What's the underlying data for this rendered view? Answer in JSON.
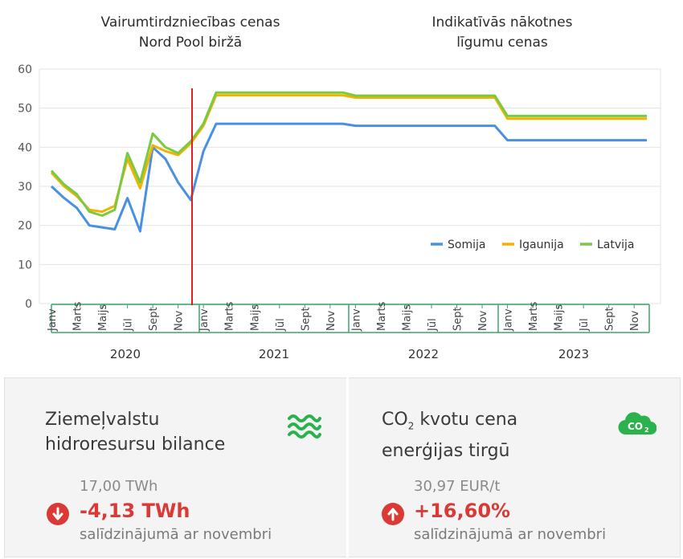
{
  "chart_data": {
    "type": "line",
    "titles": {
      "left": [
        "Vairumtirdzniecības cenas",
        "Nord Pool biržā"
      ],
      "right": [
        "Indikatīvās nākotnes",
        "līgumu cenas"
      ]
    },
    "ylim": [
      0,
      60
    ],
    "yticks": [
      "0",
      "10",
      "20",
      "30",
      "40",
      "50",
      "60"
    ],
    "month_labels": [
      "Janv",
      "Marts",
      "Maijs",
      "Jūl",
      "Sept",
      "Nov"
    ],
    "years": [
      "2020",
      "2021",
      "2022",
      "2023"
    ],
    "x_start": "2020-01",
    "divider_after_month": "2020-12",
    "legend_position": "right-middle",
    "series": [
      {
        "name": "Somija",
        "color": "#4a90e2",
        "values": [
          30,
          27,
          24.5,
          20,
          19.5,
          19,
          27,
          18.5,
          40,
          37,
          31,
          26.5,
          39,
          46,
          46,
          46,
          46,
          46,
          46,
          46,
          46,
          46,
          46,
          46,
          45.5,
          45.5,
          45.5,
          45.5,
          45.5,
          45.5,
          45.5,
          45.5,
          45.5,
          45.5,
          45.5,
          45.5,
          41.8,
          41.8,
          41.8,
          41.8,
          41.8,
          41.8,
          41.8,
          41.8,
          41.8,
          41.8,
          41.8,
          41.8
        ]
      },
      {
        "name": "Igaunija",
        "color": "#f0b400",
        "values": [
          33.5,
          30,
          27.5,
          24,
          23.5,
          25,
          37,
          29.5,
          40.5,
          39,
          38,
          41,
          45.5,
          53.3,
          53.3,
          53.3,
          53.3,
          53.3,
          53.3,
          53.3,
          53.3,
          53.3,
          53.3,
          53.3,
          52.7,
          52.7,
          52.7,
          52.7,
          52.7,
          52.7,
          52.7,
          52.7,
          52.7,
          52.7,
          52.7,
          52.7,
          47.3,
          47.3,
          47.3,
          47.3,
          47.3,
          47.3,
          47.3,
          47.3,
          47.3,
          47.3,
          47.3,
          47.3
        ]
      },
      {
        "name": "Latvija",
        "color": "#7ac943",
        "values": [
          34,
          30.5,
          28,
          23.5,
          22.5,
          24,
          38.5,
          31,
          43.5,
          40,
          38.5,
          41.5,
          46,
          54,
          54,
          54,
          54,
          54,
          54,
          54,
          54,
          54,
          54,
          54,
          53.2,
          53.2,
          53.2,
          53.2,
          53.2,
          53.2,
          53.2,
          53.2,
          53.2,
          53.2,
          53.2,
          53.2,
          48,
          48,
          48,
          48,
          48,
          48,
          48,
          48,
          48,
          48,
          48,
          48
        ]
      }
    ]
  },
  "cards": {
    "hydro": {
      "title_line1": "Ziemeļvalstu",
      "title_line2": "hidroresursu bilance",
      "base_value": "17,00 TWh",
      "change_value": "-4,13 TWh",
      "direction": "down",
      "compare_text": "salīdzinājumā ar novembri",
      "icon": "water-waves-icon"
    },
    "co2": {
      "title_line1_pre": "CO",
      "title_line1_sub": "2",
      "title_line1_post": " kvotu cena",
      "title_line2": "enerģijas tirgū",
      "base_value": "30,97 EUR/t",
      "change_value": "+16,60%",
      "direction": "up",
      "compare_text": "salīdzinājumā ar novembri",
      "icon": "co2-cloud-icon",
      "icon_text_main": "CO",
      "icon_text_sub": "2"
    }
  },
  "colors": {
    "accent_green": "#2bb24c",
    "negative_red": "#d93a36",
    "divider_red": "#e0201c",
    "axis_green": "#3aa66a"
  }
}
